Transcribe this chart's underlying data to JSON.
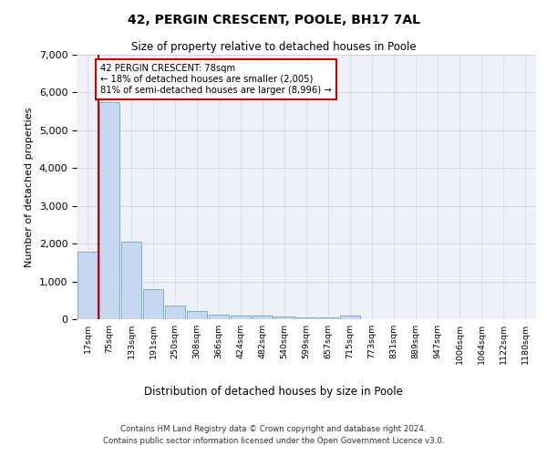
{
  "title1": "42, PERGIN CRESCENT, POOLE, BH17 7AL",
  "title2": "Size of property relative to detached houses in Poole",
  "xlabel": "Distribution of detached houses by size in Poole",
  "ylabel": "Number of detached properties",
  "categories": [
    "17sqm",
    "75sqm",
    "133sqm",
    "191sqm",
    "250sqm",
    "308sqm",
    "366sqm",
    "424sqm",
    "482sqm",
    "540sqm",
    "599sqm",
    "657sqm",
    "715sqm",
    "773sqm",
    "831sqm",
    "889sqm",
    "947sqm",
    "1006sqm",
    "1064sqm",
    "1122sqm",
    "1180sqm"
  ],
  "values": [
    1780,
    5750,
    2060,
    800,
    370,
    210,
    120,
    105,
    100,
    80,
    60,
    55,
    90,
    0,
    0,
    0,
    0,
    0,
    0,
    0,
    0
  ],
  "bar_color": "#c5d8f0",
  "bar_edge_color": "#7aadd4",
  "property_line_x": 1,
  "annotation_text": "42 PERGIN CRESCENT: 78sqm\n← 18% of detached houses are smaller (2,005)\n81% of semi-detached houses are larger (8,996) →",
  "annotation_box_color": "#ffffff",
  "annotation_box_edge": "#cc0000",
  "vline_color": "#cc0000",
  "grid_color": "#d0d8e8",
  "background_color": "#eef2f8",
  "ylim": [
    0,
    7000
  ],
  "footer1": "Contains HM Land Registry data © Crown copyright and database right 2024.",
  "footer2": "Contains public sector information licensed under the Open Government Licence v3.0."
}
